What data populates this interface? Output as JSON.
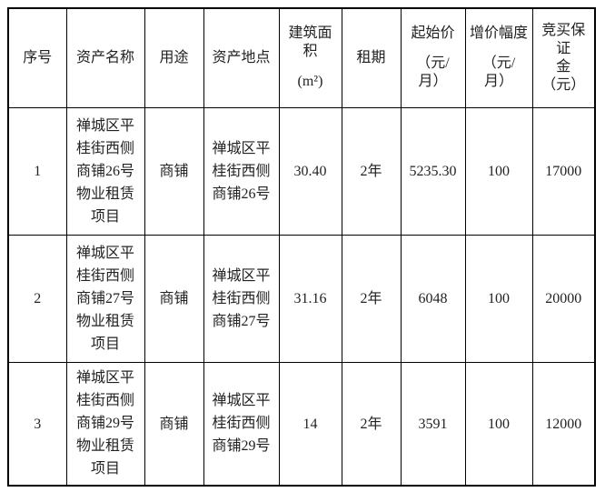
{
  "table": {
    "columns": [
      {
        "key": "seq",
        "label": "序号",
        "lines": [
          "序号"
        ]
      },
      {
        "key": "asset_name",
        "label": "资产名称",
        "lines": [
          "资产名称"
        ]
      },
      {
        "key": "usage",
        "label": "用途",
        "lines": [
          "用途"
        ]
      },
      {
        "key": "location",
        "label": "资产地点",
        "lines": [
          "资产地点"
        ]
      },
      {
        "key": "area",
        "label": "建筑面积(m²)",
        "lines": [
          "建筑面",
          "积",
          "",
          "(m²)"
        ]
      },
      {
        "key": "lease_term",
        "label": "租期",
        "lines": [
          "租期"
        ]
      },
      {
        "key": "start_price",
        "label": "起始价（元/月）",
        "lines": [
          "起始价",
          "",
          "（元/",
          "月）"
        ]
      },
      {
        "key": "increment",
        "label": "增价幅度（元/月）",
        "lines": [
          "增价幅度",
          "",
          "（元/",
          "月）"
        ]
      },
      {
        "key": "deposit",
        "label": "竞买保证金（元）",
        "lines": [
          "竞买保证",
          "金",
          "（元）"
        ]
      }
    ],
    "rows": [
      [
        "1",
        "禅城区平桂街西侧商铺26号物业租赁项目",
        "商铺",
        "禅城区平桂街西侧商铺26号",
        "30.40",
        "2年",
        "5235.30",
        "100",
        "17000"
      ],
      [
        "2",
        "禅城区平桂街西侧商铺27号物业租赁项目",
        "商铺",
        "禅城区平桂街西侧商铺27号",
        "31.16",
        "2年",
        "6048",
        "100",
        "20000"
      ],
      [
        "3",
        "禅城区平桂街西侧商铺29号物业租赁项目",
        "商铺",
        "禅城区平桂街西侧商铺29号",
        "14",
        "2年",
        "3591",
        "100",
        "12000"
      ]
    ]
  },
  "colors": {
    "border": "#000000",
    "text": "#222222",
    "background": "#ffffff"
  }
}
